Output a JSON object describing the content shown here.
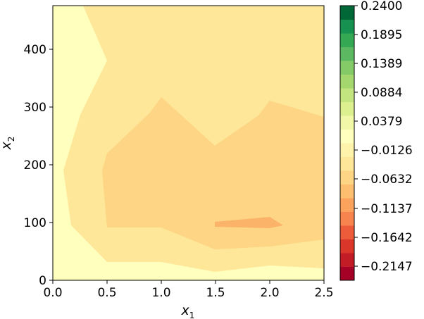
{
  "chart_data": {
    "type": "contourf",
    "title": "",
    "xlabel": "x",
    "xlabel_sub": "1",
    "ylabel": "x",
    "ylabel_sub": "2",
    "xlim": [
      0,
      2.5
    ],
    "ylim": [
      0,
      475
    ],
    "xticks": [
      "0.0",
      "0.5",
      "1.0",
      "1.5",
      "2.0",
      "2.5"
    ],
    "yticks": [
      "0",
      "100",
      "200",
      "300",
      "400"
    ],
    "colormap": "RdYlGn",
    "colorbar": {
      "range": [
        -0.24,
        0.24
      ],
      "ticks": [
        "0.2400",
        "0.1895",
        "0.1389",
        "0.0884",
        "0.0379",
        "−0.0126",
        "−0.0632",
        "−0.1137",
        "−0.1642",
        "−0.2147"
      ],
      "band_colors": [
        "#a50026",
        "#c21c27",
        "#da372a",
        "#ec5c3b",
        "#f7844e",
        "#fba35c",
        "#fdbf6f",
        "#fed584",
        "#fee799",
        "#fff2aa",
        "#ffffbe",
        "#f1f9a9",
        "#dcf08f",
        "#c2e57f",
        "#a4d86e",
        "#84ca66",
        "#5db961",
        "#34a853",
        "#179150",
        "#006837"
      ]
    },
    "contour_levels": [
      {
        "name": "background",
        "value_range": [
          -0.0126,
          0.0126
        ],
        "color": "#ffffbe"
      },
      {
        "name": "level-1",
        "value_range": [
          -0.0379,
          -0.0126
        ],
        "color": "#fff2aa"
      },
      {
        "name": "level-2",
        "value_range": [
          -0.0632,
          -0.0379
        ],
        "color": "#fee799"
      },
      {
        "name": "level-3",
        "value_range": [
          -0.0884,
          -0.0632
        ],
        "color": "#fed584"
      },
      {
        "name": "level-4",
        "value_range": [
          -0.1137,
          -0.0884
        ],
        "color": "#fbb369"
      }
    ],
    "regions": [
      {
        "level": "level-1",
        "points": [
          [
            0.28,
            475
          ],
          [
            2.5,
            475
          ],
          [
            2.5,
            20
          ],
          [
            2.0,
            25
          ],
          [
            1.5,
            12
          ],
          [
            1.0,
            32
          ],
          [
            0.5,
            32
          ],
          [
            0.1,
            190
          ],
          [
            0.25,
            280
          ],
          [
            0.5,
            380
          ]
        ]
      },
      {
        "level": "level-2",
        "points": [
          [
            0.1,
            190
          ],
          [
            0.25,
            280
          ],
          [
            0.5,
            380
          ],
          [
            0.26,
            475
          ],
          [
            2.5,
            475
          ],
          [
            2.5,
            20
          ],
          [
            2.0,
            25
          ],
          [
            1.5,
            14
          ],
          [
            1.0,
            32
          ],
          [
            0.5,
            32
          ],
          [
            0.18,
            95
          ]
        ]
      },
      {
        "level": "level-3",
        "points": [
          [
            0.5,
            220
          ],
          [
            0.9,
            290
          ],
          [
            1.0,
            316
          ],
          [
            1.5,
            232
          ],
          [
            1.9,
            285
          ],
          [
            2.0,
            310
          ],
          [
            2.5,
            282
          ],
          [
            2.5,
            70
          ],
          [
            2.0,
            58
          ],
          [
            1.5,
            54
          ],
          [
            1.0,
            92
          ],
          [
            0.5,
            92
          ],
          [
            0.47,
            190
          ]
        ]
      },
      {
        "level": "level-4",
        "points": [
          [
            0.49,
            190
          ],
          [
            0.5,
            220
          ],
          [
            0.9,
            290
          ],
          [
            1.0,
            316
          ],
          [
            1.5,
            232
          ],
          [
            1.9,
            285
          ],
          [
            2.0,
            310
          ],
          [
            2.5,
            282
          ],
          [
            2.5,
            70
          ],
          [
            2.0,
            58
          ],
          [
            1.5,
            54
          ],
          [
            1.0,
            92
          ],
          [
            0.5,
            92
          ]
        ]
      },
      {
        "level": "level-4",
        "points": [
          [
            1.5,
            102
          ],
          [
            2.0,
            110
          ],
          [
            2.12,
            96
          ],
          [
            2.0,
            92
          ],
          [
            1.5,
            95
          ]
        ]
      }
    ]
  }
}
